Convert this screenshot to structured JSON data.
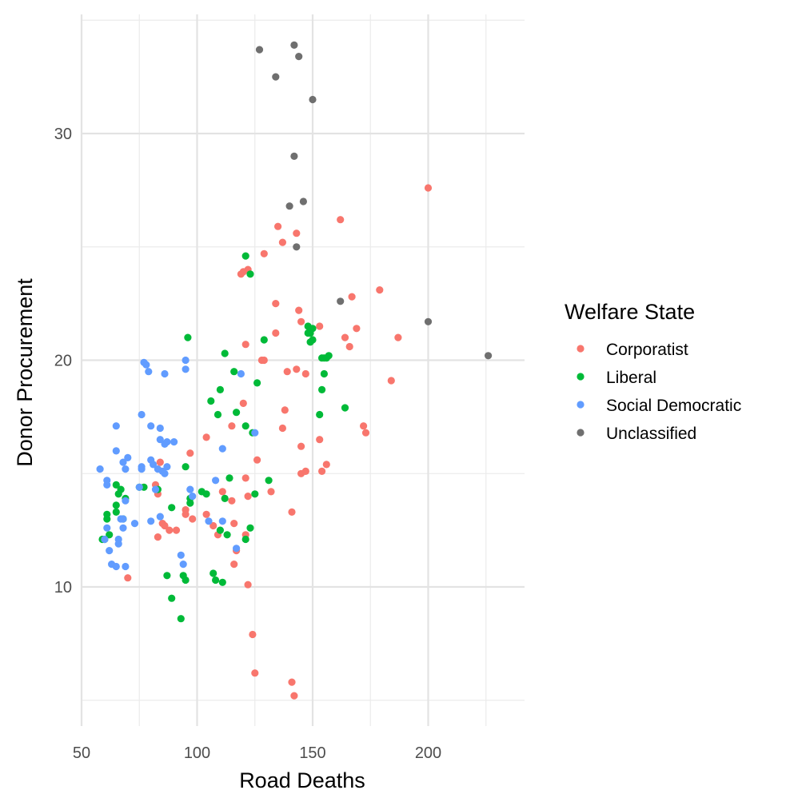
{
  "chart_data": {
    "type": "scatter",
    "xlabel": "Road Deaths",
    "ylabel": "Donor Procurement",
    "xlim": [
      50,
      240
    ],
    "ylim": [
      5,
      36
    ],
    "x_ticks": [
      50,
      100,
      150,
      200
    ],
    "y_ticks": [
      10,
      20,
      30
    ],
    "x_minor": [
      75,
      125,
      175,
      225
    ],
    "y_minor": [
      5,
      15,
      25,
      35
    ],
    "grid": true,
    "legend": {
      "title": "Welfare State",
      "position": "right"
    },
    "series": [
      {
        "name": "Corporatist",
        "color": "#F8766D",
        "points": [
          [
            70,
            10.4
          ],
          [
            82,
            14.5
          ],
          [
            83,
            14.1
          ],
          [
            83,
            12.2
          ],
          [
            84,
            15.5
          ],
          [
            85,
            12.8
          ],
          [
            86,
            12.7
          ],
          [
            88,
            12.5
          ],
          [
            91,
            12.5
          ],
          [
            95,
            13.2
          ],
          [
            95,
            13.4
          ],
          [
            97,
            15.9
          ],
          [
            98,
            13.0
          ],
          [
            104,
            16.6
          ],
          [
            104,
            13.2
          ],
          [
            107,
            12.7
          ],
          [
            109,
            12.3
          ],
          [
            111,
            14.2
          ],
          [
            115,
            17.1
          ],
          [
            115,
            13.8
          ],
          [
            116,
            12.8
          ],
          [
            116,
            11.0
          ],
          [
            117,
            11.6
          ],
          [
            119,
            23.8
          ],
          [
            120,
            23.9
          ],
          [
            120,
            18.1
          ],
          [
            121,
            20.7
          ],
          [
            121,
            14.8
          ],
          [
            121,
            12.3
          ],
          [
            122,
            24.0
          ],
          [
            122,
            14.0
          ],
          [
            122,
            10.1
          ],
          [
            124,
            7.9
          ],
          [
            125,
            6.2
          ],
          [
            126,
            15.6
          ],
          [
            128,
            20.0
          ],
          [
            129,
            24.7
          ],
          [
            129,
            20.0
          ],
          [
            132,
            14.2
          ],
          [
            134,
            22.5
          ],
          [
            134,
            21.2
          ],
          [
            135,
            25.9
          ],
          [
            137,
            25.2
          ],
          [
            137,
            17.0
          ],
          [
            138,
            17.8
          ],
          [
            139,
            19.5
          ],
          [
            141,
            13.3
          ],
          [
            141,
            5.8
          ],
          [
            143,
            19.6
          ],
          [
            143,
            25.6
          ],
          [
            144,
            22.2
          ],
          [
            145,
            21.7
          ],
          [
            145,
            16.2
          ],
          [
            145,
            15.0
          ],
          [
            147,
            19.4
          ],
          [
            147,
            15.1
          ],
          [
            153,
            21.5
          ],
          [
            153,
            16.5
          ],
          [
            154,
            15.1
          ],
          [
            156,
            15.4
          ],
          [
            162,
            26.2
          ],
          [
            164,
            21.0
          ],
          [
            166,
            20.6
          ],
          [
            167,
            22.8
          ],
          [
            169,
            21.4
          ],
          [
            172,
            17.1
          ],
          [
            173,
            16.8
          ],
          [
            179,
            23.1
          ],
          [
            184,
            19.1
          ],
          [
            187,
            21.0
          ],
          [
            200,
            27.6
          ],
          [
            142,
            5.2
          ]
        ]
      },
      {
        "name": "Liberal",
        "color": "#00BA38",
        "points": [
          [
            59,
            12.1
          ],
          [
            60,
            12.1
          ],
          [
            61,
            13.0
          ],
          [
            61,
            13.2
          ],
          [
            62,
            12.3
          ],
          [
            65,
            13.3
          ],
          [
            65,
            13.6
          ],
          [
            65,
            14.5
          ],
          [
            66,
            14.1
          ],
          [
            67,
            14.3
          ],
          [
            68,
            13.0
          ],
          [
            69,
            13.9
          ],
          [
            75,
            14.4
          ],
          [
            77,
            14.4
          ],
          [
            83,
            14.3
          ],
          [
            87,
            10.5
          ],
          [
            89,
            13.5
          ],
          [
            89,
            9.5
          ],
          [
            93,
            8.6
          ],
          [
            94,
            10.5
          ],
          [
            95,
            10.3
          ],
          [
            95,
            15.3
          ],
          [
            96,
            21.0
          ],
          [
            97,
            13.7
          ],
          [
            97,
            13.9
          ],
          [
            102,
            14.2
          ],
          [
            104,
            14.1
          ],
          [
            106,
            18.2
          ],
          [
            107,
            10.6
          ],
          [
            108,
            10.3
          ],
          [
            109,
            17.6
          ],
          [
            110,
            18.7
          ],
          [
            110,
            12.5
          ],
          [
            111,
            10.2
          ],
          [
            112,
            13.9
          ],
          [
            112,
            20.3
          ],
          [
            113,
            12.3
          ],
          [
            114,
            14.8
          ],
          [
            116,
            19.5
          ],
          [
            117,
            17.7
          ],
          [
            121,
            24.6
          ],
          [
            121,
            17.1
          ],
          [
            121,
            12.1
          ],
          [
            123,
            23.8
          ],
          [
            123,
            12.6
          ],
          [
            124,
            16.8
          ],
          [
            125,
            14.1
          ],
          [
            126,
            19.0
          ],
          [
            129,
            20.9
          ],
          [
            131,
            14.7
          ],
          [
            148,
            21.2
          ],
          [
            148,
            21.5
          ],
          [
            149,
            21.2
          ],
          [
            149,
            20.8
          ],
          [
            150,
            21.4
          ],
          [
            150,
            20.9
          ],
          [
            153,
            17.6
          ],
          [
            154,
            18.7
          ],
          [
            154,
            20.1
          ],
          [
            155,
            19.4
          ],
          [
            155,
            20.1
          ],
          [
            156,
            20.1
          ],
          [
            157,
            20.2
          ],
          [
            164,
            17.9
          ]
        ]
      },
      {
        "name": "Social Democratic",
        "color": "#619CFF",
        "points": [
          [
            58,
            15.2
          ],
          [
            60,
            12.1
          ],
          [
            61,
            14.5
          ],
          [
            61,
            14.7
          ],
          [
            61,
            12.6
          ],
          [
            62,
            11.6
          ],
          [
            63,
            11.0
          ],
          [
            65,
            17.1
          ],
          [
            65,
            16.0
          ],
          [
            65,
            10.9
          ],
          [
            66,
            12.1
          ],
          [
            66,
            11.9
          ],
          [
            67,
            13.0
          ],
          [
            68,
            15.5
          ],
          [
            68,
            12.6
          ],
          [
            68,
            13.0
          ],
          [
            69,
            13.8
          ],
          [
            69,
            15.2
          ],
          [
            69,
            10.9
          ],
          [
            70,
            15.7
          ],
          [
            73,
            12.8
          ],
          [
            75,
            14.4
          ],
          [
            76,
            17.6
          ],
          [
            76,
            15.3
          ],
          [
            76,
            15.2
          ],
          [
            77,
            19.9
          ],
          [
            78,
            19.8
          ],
          [
            79,
            19.5
          ],
          [
            80,
            17.1
          ],
          [
            80,
            15.6
          ],
          [
            80,
            12.9
          ],
          [
            81,
            15.4
          ],
          [
            82,
            14.3
          ],
          [
            83,
            15.2
          ],
          [
            84,
            17.0
          ],
          [
            84,
            16.5
          ],
          [
            84,
            13.1
          ],
          [
            85,
            15.1
          ],
          [
            86,
            16.3
          ],
          [
            86,
            15.0
          ],
          [
            86,
            19.4
          ],
          [
            87,
            16.4
          ],
          [
            87,
            15.3
          ],
          [
            90,
            16.4
          ],
          [
            93,
            11.4
          ],
          [
            94,
            11.0
          ],
          [
            95,
            20.0
          ],
          [
            95,
            19.6
          ],
          [
            97,
            14.3
          ],
          [
            98,
            14.0
          ],
          [
            105,
            12.9
          ],
          [
            108,
            14.7
          ],
          [
            111,
            16.1
          ],
          [
            111,
            12.9
          ],
          [
            117,
            11.7
          ],
          [
            119,
            19.4
          ],
          [
            125,
            16.8
          ]
        ]
      },
      {
        "name": "Unclassified",
        "color": "#6F6F6F",
        "points": [
          [
            127,
            33.7
          ],
          [
            134,
            32.5
          ],
          [
            140,
            26.8
          ],
          [
            142,
            33.9
          ],
          [
            142,
            29.0
          ],
          [
            143,
            25.0
          ],
          [
            144,
            33.4
          ],
          [
            146,
            27.0
          ],
          [
            150,
            31.5
          ],
          [
            162,
            22.6
          ],
          [
            200,
            21.7
          ],
          [
            226,
            20.2
          ]
        ]
      }
    ]
  }
}
